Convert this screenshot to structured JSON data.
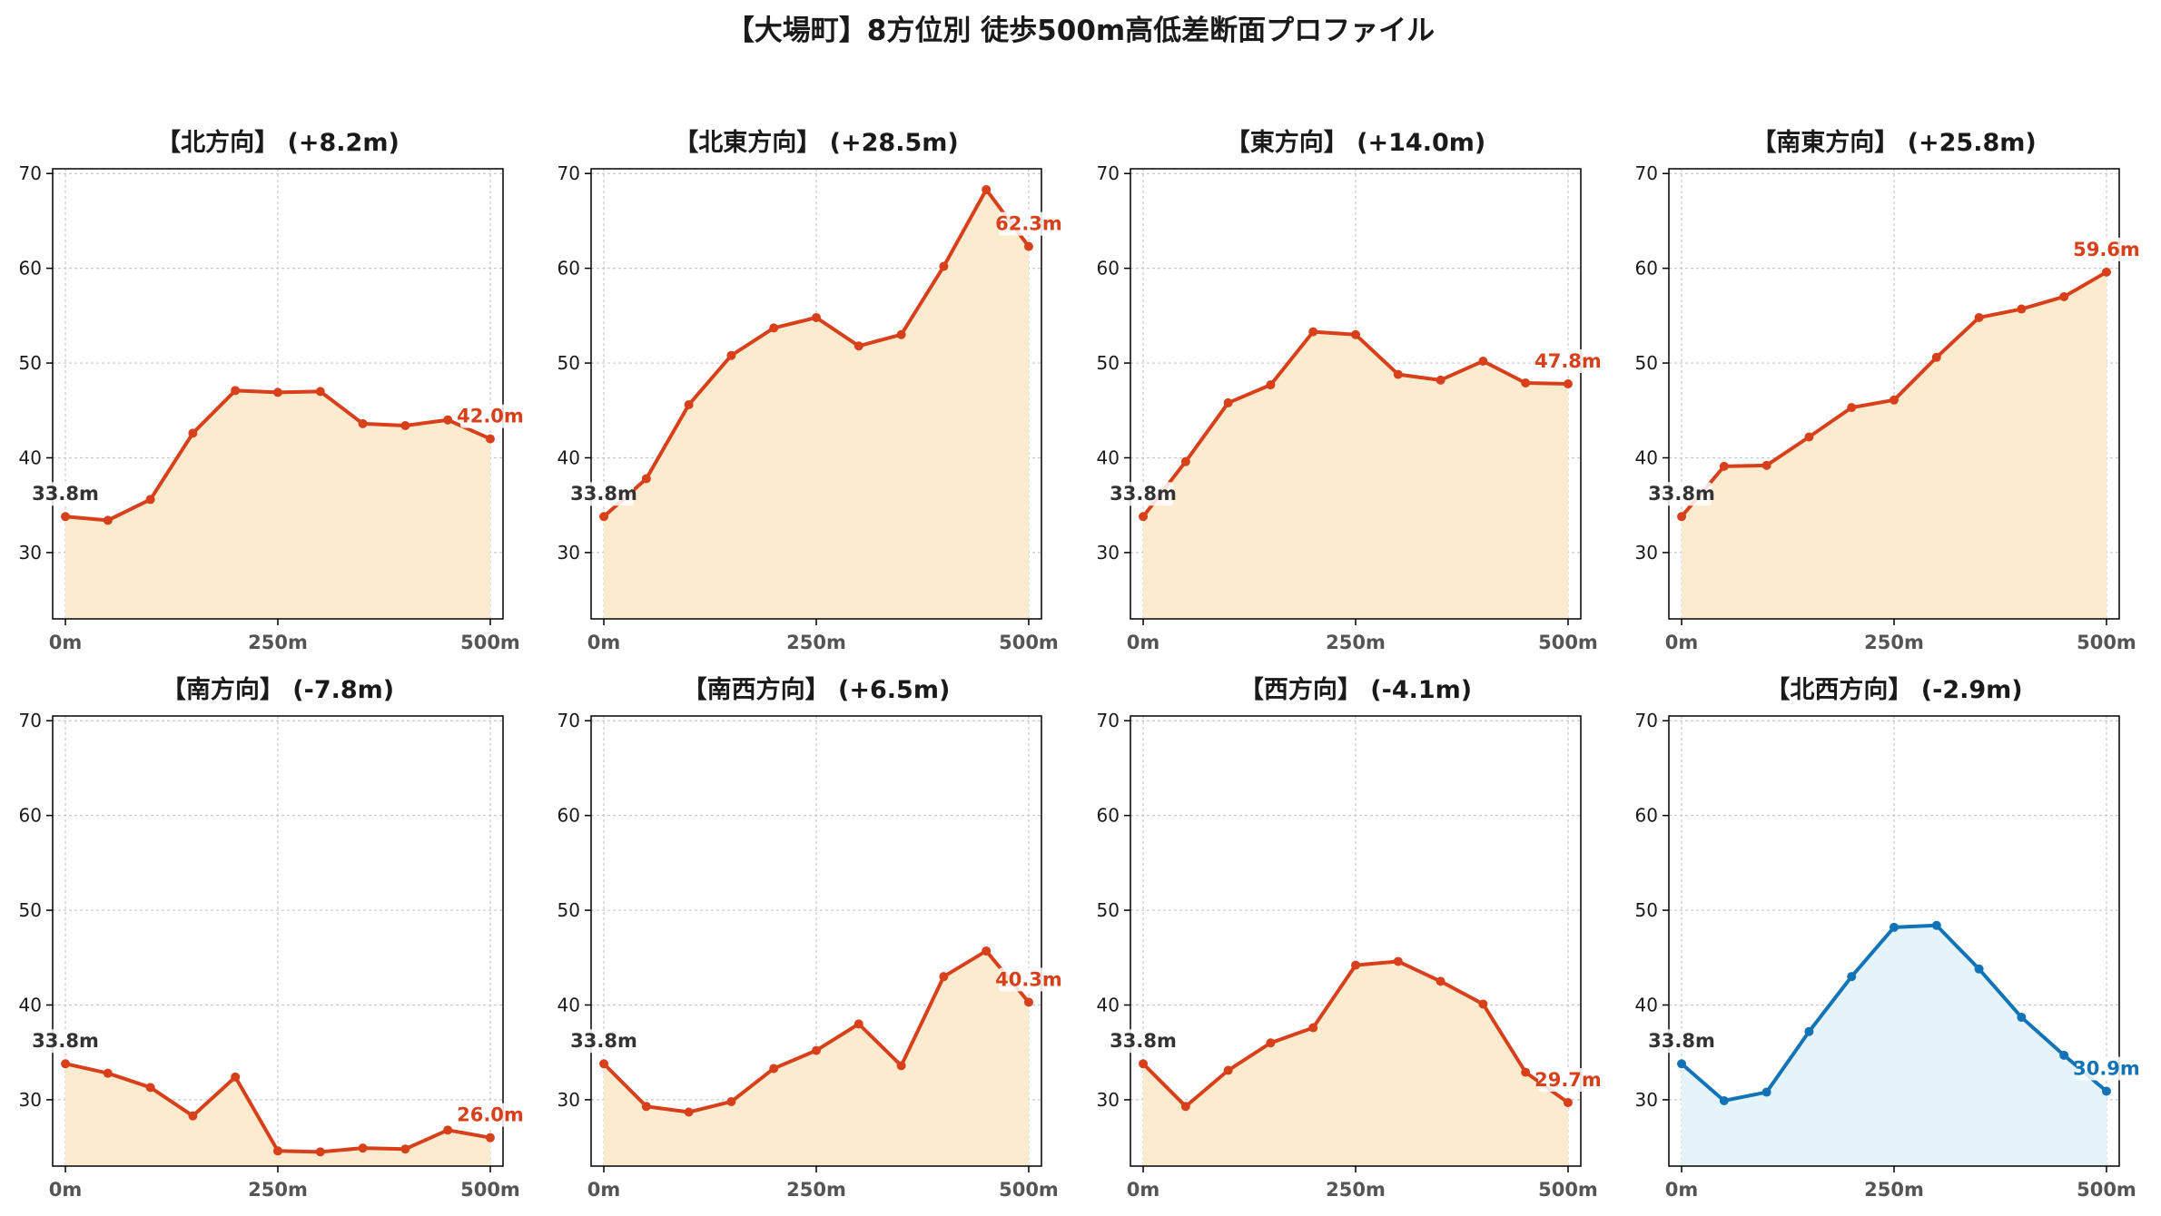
{
  "suptitle": "【大場町】8方位別 徒歩500m高低差断面プロファイル",
  "colors": {
    "rise_line": "#d7401a",
    "rise_fill": "#fdebd0",
    "fall_line": "#1274b6",
    "fall_fill": "#e5f4fb",
    "start_label": "#333333"
  },
  "chart_data": [
    {
      "type": "line",
      "title": "【北方向】 (+8.2m)",
      "theme": "rise",
      "x": [
        0,
        50,
        100,
        150,
        200,
        250,
        300,
        350,
        400,
        450,
        500
      ],
      "y": [
        33.8,
        33.4,
        35.6,
        42.6,
        47.1,
        46.9,
        47.0,
        43.6,
        43.4,
        44.0,
        42.0
      ],
      "xticks": [
        "0m",
        "250m",
        "500m"
      ],
      "yticks": [
        30,
        40,
        50,
        60,
        70
      ],
      "ylim": [
        23,
        70.5
      ],
      "xlim": [
        -15,
        515
      ],
      "grid": true,
      "start_label": "33.8m",
      "end_label": "42.0m"
    },
    {
      "type": "line",
      "title": "【北東方向】 (+28.5m)",
      "theme": "rise",
      "x": [
        0,
        50,
        100,
        150,
        200,
        250,
        300,
        350,
        400,
        450,
        500
      ],
      "y": [
        33.8,
        37.8,
        45.6,
        50.8,
        53.7,
        54.8,
        51.8,
        53.0,
        60.2,
        68.3,
        62.3
      ],
      "xticks": [
        "0m",
        "250m",
        "500m"
      ],
      "yticks": [
        30,
        40,
        50,
        60,
        70
      ],
      "ylim": [
        23,
        70.5
      ],
      "xlim": [
        -15,
        515
      ],
      "grid": true,
      "start_label": "33.8m",
      "end_label": "62.3m"
    },
    {
      "type": "line",
      "title": "【東方向】 (+14.0m)",
      "theme": "rise",
      "x": [
        0,
        50,
        100,
        150,
        200,
        250,
        300,
        350,
        400,
        450,
        500
      ],
      "y": [
        33.8,
        39.6,
        45.8,
        47.7,
        53.3,
        53.0,
        48.8,
        48.2,
        50.2,
        47.9,
        47.8
      ],
      "xticks": [
        "0m",
        "250m",
        "500m"
      ],
      "yticks": [
        30,
        40,
        50,
        60,
        70
      ],
      "ylim": [
        23,
        70.5
      ],
      "xlim": [
        -15,
        515
      ],
      "grid": true,
      "start_label": "33.8m",
      "end_label": "47.8m"
    },
    {
      "type": "line",
      "title": "【南東方向】 (+25.8m)",
      "theme": "rise",
      "x": [
        0,
        50,
        100,
        150,
        200,
        250,
        300,
        350,
        400,
        450,
        500
      ],
      "y": [
        33.8,
        39.1,
        39.2,
        42.2,
        45.3,
        46.1,
        50.6,
        54.8,
        55.7,
        57.0,
        59.6
      ],
      "xticks": [
        "0m",
        "250m",
        "500m"
      ],
      "yticks": [
        30,
        40,
        50,
        60,
        70
      ],
      "ylim": [
        23,
        70.5
      ],
      "xlim": [
        -15,
        515
      ],
      "grid": true,
      "start_label": "33.8m",
      "end_label": "59.6m"
    },
    {
      "type": "line",
      "title": "【南方向】 (-7.8m)",
      "theme": "rise",
      "x": [
        0,
        50,
        100,
        150,
        200,
        250,
        300,
        350,
        400,
        450,
        500
      ],
      "y": [
        33.8,
        32.8,
        31.3,
        28.3,
        32.4,
        24.6,
        24.5,
        24.9,
        24.8,
        26.8,
        26.0
      ],
      "xticks": [
        "0m",
        "250m",
        "500m"
      ],
      "yticks": [
        30,
        40,
        50,
        60,
        70
      ],
      "ylim": [
        23,
        70.5
      ],
      "xlim": [
        -15,
        515
      ],
      "grid": true,
      "start_label": "33.8m",
      "end_label": "26.0m"
    },
    {
      "type": "line",
      "title": "【南西方向】 (+6.5m)",
      "theme": "rise",
      "x": [
        0,
        50,
        100,
        150,
        200,
        250,
        300,
        350,
        400,
        450,
        500
      ],
      "y": [
        33.8,
        29.3,
        28.7,
        29.8,
        33.3,
        35.2,
        38.0,
        33.6,
        43.0,
        45.7,
        40.3
      ],
      "xticks": [
        "0m",
        "250m",
        "500m"
      ],
      "yticks": [
        30,
        40,
        50,
        60,
        70
      ],
      "ylim": [
        23,
        70.5
      ],
      "xlim": [
        -15,
        515
      ],
      "grid": true,
      "start_label": "33.8m",
      "end_label": "40.3m"
    },
    {
      "type": "line",
      "title": "【西方向】 (-4.1m)",
      "theme": "rise",
      "x": [
        0,
        50,
        100,
        150,
        200,
        250,
        300,
        350,
        400,
        450,
        500
      ],
      "y": [
        33.8,
        29.3,
        33.1,
        36.0,
        37.6,
        44.2,
        44.6,
        42.5,
        40.1,
        32.9,
        29.7
      ],
      "xticks": [
        "0m",
        "250m",
        "500m"
      ],
      "yticks": [
        30,
        40,
        50,
        60,
        70
      ],
      "ylim": [
        23,
        70.5
      ],
      "xlim": [
        -15,
        515
      ],
      "grid": true,
      "start_label": "33.8m",
      "end_label": "29.7m"
    },
    {
      "type": "line",
      "title": "【北西方向】 (-2.9m)",
      "theme": "fall",
      "x": [
        0,
        50,
        100,
        150,
        200,
        250,
        300,
        350,
        400,
        450,
        500
      ],
      "y": [
        33.8,
        29.9,
        30.8,
        37.2,
        43.0,
        48.2,
        48.4,
        43.8,
        38.7,
        34.7,
        30.9
      ],
      "xticks": [
        "0m",
        "250m",
        "500m"
      ],
      "yticks": [
        30,
        40,
        50,
        60,
        70
      ],
      "ylim": [
        23,
        70.5
      ],
      "xlim": [
        -15,
        515
      ],
      "grid": true,
      "start_label": "33.8m",
      "end_label": "30.9m"
    }
  ]
}
